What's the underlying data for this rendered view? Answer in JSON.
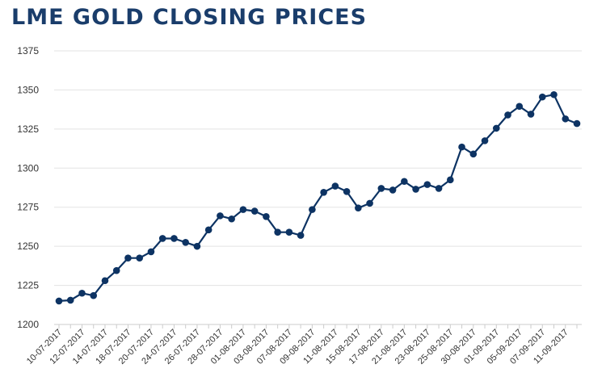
{
  "chart_data": {
    "type": "line",
    "title": "LME GOLD CLOSING PRICES",
    "xlabel": "",
    "ylabel": "",
    "ylim": [
      1200,
      1375
    ],
    "yticks": [
      1200,
      1225,
      1250,
      1275,
      1300,
      1325,
      1350,
      1375
    ],
    "grid": "horizontal",
    "legend": "none",
    "colors": {
      "line": "#0d3363",
      "grid": "#e3e3e3",
      "axis": "#cccccc",
      "title": "#1a3d6b"
    },
    "x": [
      "10-07-2017",
      "11-07-2017",
      "12-07-2017",
      "13-07-2017",
      "14-07-2017",
      "17-07-2017",
      "18-07-2017",
      "19-07-2017",
      "20-07-2017",
      "21-07-2017",
      "24-07-2017",
      "25-07-2017",
      "26-07-2017",
      "27-07-2017",
      "28-07-2017",
      "31-07-2017",
      "01-08-2017",
      "02-08-2017",
      "03-08-2017",
      "04-08-2017",
      "07-08-2017",
      "08-08-2017",
      "09-08-2017",
      "10-08-2017",
      "11-08-2017",
      "14-08-2017",
      "15-08-2017",
      "16-08-2017",
      "17-08-2017",
      "18-08-2017",
      "21-08-2017",
      "22-08-2017",
      "23-08-2017",
      "24-08-2017",
      "25-08-2017",
      "29-08-2017",
      "30-08-2017",
      "31-08-2017",
      "01-09-2017",
      "04-09-2017",
      "05-09-2017",
      "06-09-2017",
      "07-09-2017",
      "08-09-2017",
      "11-09-2017",
      "12-09-2017"
    ],
    "xtick_labels": [
      "10-07-2017",
      "12-07-2017",
      "14-07-2017",
      "18-07-2017",
      "20-07-2017",
      "24-07-2017",
      "26-07-2017",
      "28-07-2017",
      "01-08-2017",
      "03-08-2017",
      "07-08-2017",
      "09-08-2017",
      "11-08-2017",
      "15-08-2017",
      "17-08-2017",
      "21-08-2017",
      "23-08-2017",
      "25-08-2017",
      "30-08-2017",
      "01-09-2017",
      "05-09-2017",
      "07-09-2017",
      "11-09-2017"
    ],
    "series": [
      {
        "values": [
          1215,
          1215.5,
          1220,
          1218.5,
          1228,
          1234.5,
          1242.5,
          1242.5,
          1246.5,
          1255,
          1255,
          1252.5,
          1250,
          1260.5,
          1269.5,
          1267.5,
          1273.5,
          1272.5,
          1269,
          1259,
          1259,
          1257,
          1273.5,
          1284.5,
          1288.5,
          1285,
          1274.5,
          1277.5,
          1287,
          1286,
          1291.5,
          1286.5,
          1289.5,
          1287,
          1292.5,
          1313.5,
          1309,
          1317.5,
          1325.5,
          1334,
          1339.5,
          1334.5,
          1345.5,
          1347,
          1331.5,
          1328.5
        ]
      }
    ]
  }
}
